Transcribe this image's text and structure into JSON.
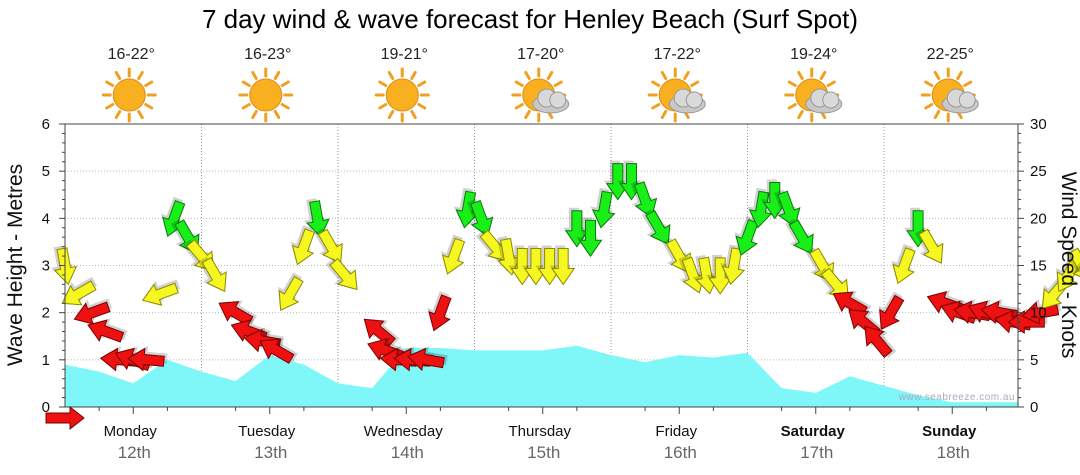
{
  "title": "7 day wind & wave forecast for Henley Beach  (Surf Spot)",
  "watermark": "www.seabreeze.com.au",
  "colors": {
    "wave_fill": "#7ff6f8",
    "arrow_green": "#18ee18",
    "arrow_yellow": "#f6f621",
    "arrow_red": "#ee1111",
    "sun": "#f8b020",
    "cloud": "#c8c8c8"
  },
  "days": [
    {
      "name": "Monday",
      "date": "12th",
      "temp": "16-22°",
      "weather_icon": "sun-icon",
      "bold": false
    },
    {
      "name": "Tuesday",
      "date": "13th",
      "temp": "16-23°",
      "weather_icon": "sun-icon",
      "bold": false
    },
    {
      "name": "Wednesday",
      "date": "14th",
      "temp": "19-21°",
      "weather_icon": "sun-icon",
      "bold": false
    },
    {
      "name": "Thursday",
      "date": "15th",
      "temp": "17-20°",
      "weather_icon": "sun-cloud-icon",
      "bold": false
    },
    {
      "name": "Friday",
      "date": "16th",
      "temp": "17-22°",
      "weather_icon": "sun-cloud-icon",
      "bold": false
    },
    {
      "name": "Saturday",
      "date": "17th",
      "temp": "19-24°",
      "weather_icon": "sun-cloud-icon",
      "bold": true
    },
    {
      "name": "Sunday",
      "date": "18th",
      "temp": "22-25°",
      "weather_icon": "sun-cloud-icon",
      "bold": true
    }
  ],
  "chart_data": {
    "type": "area",
    "x_unit": "day",
    "left_axis": {
      "label": "Wave Height - Metres",
      "min": 0,
      "max": 6,
      "ticks": [
        "0",
        "1",
        "2",
        "3",
        "4",
        "5",
        "6"
      ]
    },
    "right_axis": {
      "label": "Wind Speed - Knots",
      "min": 0,
      "max": 30,
      "ticks": [
        "0",
        "5",
        "10",
        "15",
        "20",
        "25",
        "30"
      ]
    },
    "grid": true,
    "wave_height": {
      "x": [
        0,
        0.25,
        0.5,
        0.75,
        1,
        1.25,
        1.5,
        1.75,
        2,
        2.25,
        2.5,
        2.75,
        3,
        3.25,
        3.5,
        3.75,
        4,
        4.25,
        4.5,
        4.75,
        5,
        5.1,
        5.25,
        5.5,
        5.75,
        6,
        6.25,
        6.5,
        6.75,
        7
      ],
      "y": [
        0.9,
        0.75,
        0.5,
        1.0,
        0.75,
        0.55,
        1.1,
        0.9,
        0.5,
        0.4,
        1.25,
        1.25,
        1.2,
        1.2,
        1.2,
        1.3,
        1.1,
        0.95,
        1.1,
        1.05,
        1.15,
        0.85,
        0.4,
        0.3,
        0.65,
        0.45,
        0.25,
        0.1,
        0.1,
        0.1
      ]
    },
    "wind_arrows": [
      {
        "x": 0.0,
        "knots": 15,
        "dir": 350
      },
      {
        "x": 0.1,
        "knots": 12,
        "dir": 60
      },
      {
        "x": 0.2,
        "knots": 10,
        "dir": 70
      },
      {
        "x": 0.3,
        "knots": 8,
        "dir": 110
      },
      {
        "x": 0.4,
        "knots": 5,
        "dir": 95
      },
      {
        "x": 0.5,
        "knots": 5,
        "dir": 110
      },
      {
        "x": 0.6,
        "knots": 5,
        "dir": 95
      },
      {
        "x": 0.7,
        "knots": 12,
        "dir": 70
      },
      {
        "x": 0.8,
        "knots": 20,
        "dir": 20
      },
      {
        "x": 0.9,
        "knots": 18,
        "dir": 330
      },
      {
        "x": 1.0,
        "knots": 16,
        "dir": 320
      },
      {
        "x": 1.1,
        "knots": 14,
        "dir": 330
      },
      {
        "x": 1.25,
        "knots": 10,
        "dir": 120
      },
      {
        "x": 1.35,
        "knots": 8,
        "dir": 110
      },
      {
        "x": 1.45,
        "knots": 7,
        "dir": 100
      },
      {
        "x": 1.55,
        "knots": 6,
        "dir": 120
      },
      {
        "x": 1.65,
        "knots": 12,
        "dir": 30
      },
      {
        "x": 1.75,
        "knots": 17,
        "dir": 20
      },
      {
        "x": 1.85,
        "knots": 20,
        "dir": 350
      },
      {
        "x": 1.95,
        "knots": 17,
        "dir": 330
      },
      {
        "x": 2.05,
        "knots": 14,
        "dir": 320
      },
      {
        "x": 2.3,
        "knots": 8,
        "dir": 130
      },
      {
        "x": 2.35,
        "knots": 6,
        "dir": 110
      },
      {
        "x": 2.45,
        "knots": 5,
        "dir": 95
      },
      {
        "x": 2.55,
        "knots": 5,
        "dir": 95
      },
      {
        "x": 2.65,
        "knots": 5,
        "dir": 100
      },
      {
        "x": 2.75,
        "knots": 10,
        "dir": 20
      },
      {
        "x": 2.85,
        "knots": 16,
        "dir": 20
      },
      {
        "x": 2.95,
        "knots": 21,
        "dir": 10
      },
      {
        "x": 3.05,
        "knots": 20,
        "dir": 340
      },
      {
        "x": 3.15,
        "knots": 17,
        "dir": 320
      },
      {
        "x": 3.25,
        "knots": 16,
        "dir": 350
      },
      {
        "x": 3.35,
        "knots": 15,
        "dir": 0
      },
      {
        "x": 3.45,
        "knots": 15,
        "dir": 0
      },
      {
        "x": 3.55,
        "knots": 15,
        "dir": 0
      },
      {
        "x": 3.65,
        "knots": 15,
        "dir": 0
      },
      {
        "x": 3.75,
        "knots": 19,
        "dir": 0
      },
      {
        "x": 3.85,
        "knots": 18,
        "dir": 0
      },
      {
        "x": 3.95,
        "knots": 21,
        "dir": 10
      },
      {
        "x": 4.05,
        "knots": 24,
        "dir": 0
      },
      {
        "x": 4.15,
        "knots": 24,
        "dir": 0
      },
      {
        "x": 4.25,
        "knots": 22,
        "dir": 340
      },
      {
        "x": 4.35,
        "knots": 19,
        "dir": 330
      },
      {
        "x": 4.5,
        "knots": 16,
        "dir": 330
      },
      {
        "x": 4.6,
        "knots": 14,
        "dir": 340
      },
      {
        "x": 4.7,
        "knots": 14,
        "dir": 350
      },
      {
        "x": 4.8,
        "knots": 14,
        "dir": 0
      },
      {
        "x": 4.9,
        "knots": 15,
        "dir": 10
      },
      {
        "x": 5.0,
        "knots": 18,
        "dir": 20
      },
      {
        "x": 5.1,
        "knots": 21,
        "dir": 10
      },
      {
        "x": 5.2,
        "knots": 22,
        "dir": 0
      },
      {
        "x": 5.3,
        "knots": 21,
        "dir": 340
      },
      {
        "x": 5.4,
        "knots": 18,
        "dir": 330
      },
      {
        "x": 5.55,
        "knots": 15,
        "dir": 330
      },
      {
        "x": 5.65,
        "knots": 13,
        "dir": 320
      },
      {
        "x": 5.75,
        "knots": 11,
        "dir": 120
      },
      {
        "x": 5.85,
        "knots": 9,
        "dir": 130
      },
      {
        "x": 5.95,
        "knots": 7,
        "dir": 140
      },
      {
        "x": 6.05,
        "knots": 10,
        "dir": 30
      },
      {
        "x": 6.15,
        "knots": 15,
        "dir": 20
      },
      {
        "x": 6.25,
        "knots": 19,
        "dir": 0
      },
      {
        "x": 6.35,
        "knots": 17,
        "dir": 330
      },
      {
        "x": 6.45,
        "knots": 11,
        "dir": 110
      },
      {
        "x": 6.55,
        "knots": 10,
        "dir": 110
      },
      {
        "x": 6.65,
        "knots": 10,
        "dir": 100
      },
      {
        "x": 6.75,
        "knots": 10,
        "dir": 110
      },
      {
        "x": 6.85,
        "knots": 10,
        "dir": 100
      },
      {
        "x": 6.95,
        "knots": 9,
        "dir": 100
      },
      {
        "x": 7.05,
        "knots": 9,
        "dir": 90
      },
      {
        "x": 7.15,
        "knots": 10,
        "dir": 80
      },
      {
        "x": 7.25,
        "knots": 12,
        "dir": 40
      },
      {
        "x": 7.35,
        "knots": 14,
        "dir": 30
      },
      {
        "x": 7.45,
        "knots": 15,
        "dir": 330
      },
      {
        "x": 7.55,
        "knots": 14,
        "dir": 310
      },
      {
        "x": 7.65,
        "knots": 13,
        "dir": 300
      }
    ]
  }
}
